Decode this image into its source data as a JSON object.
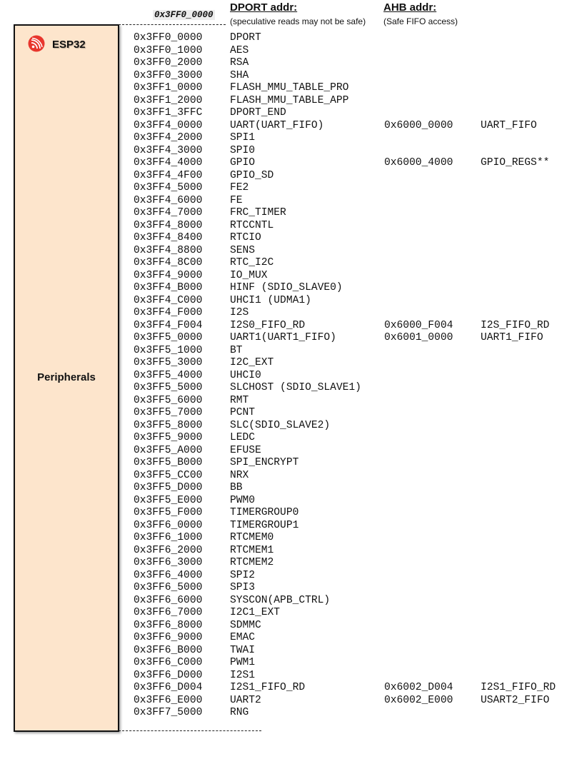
{
  "chip": {
    "label": "ESP32",
    "logo": "espressif-logo"
  },
  "region_label": "Peripherals",
  "start_address": "0x3FF0_0000",
  "headers": {
    "dport": {
      "title": "DPORT addr:",
      "note": "(speculative reads may not be safe)"
    },
    "ahb": {
      "title": "AHB addr:",
      "note": "(Safe FIFO access)"
    }
  },
  "rows": [
    {
      "addr": "0x3FF0_0000",
      "name": "DPORT"
    },
    {
      "addr": "0x3FF0_1000",
      "name": "AES"
    },
    {
      "addr": "0x3FF0_2000",
      "name": "RSA"
    },
    {
      "addr": "0x3FF0_3000",
      "name": "SHA"
    },
    {
      "addr": "0x3FF1_0000",
      "name": "FLASH_MMU_TABLE_PRO"
    },
    {
      "addr": "0x3FF1_2000",
      "name": "FLASH_MMU_TABLE_APP"
    },
    {
      "addr": "0x3FF1_3FFC",
      "name": "DPORT_END"
    },
    {
      "addr": "0x3FF4_0000",
      "name": "UART(UART_FIFO)",
      "ahb_addr": "0x6000_0000",
      "ahb_name": "UART_FIFO"
    },
    {
      "addr": "0x3FF4_2000",
      "name": "SPI1"
    },
    {
      "addr": "0x3FF4_3000",
      "name": "SPI0"
    },
    {
      "addr": "0x3FF4_4000",
      "name": "GPIO",
      "ahb_addr": "0x6000_4000",
      "ahb_name": "GPIO_REGS**"
    },
    {
      "addr": "0x3FF4_4F00",
      "name": "GPIO_SD"
    },
    {
      "addr": "0x3FF4_5000",
      "name": "FE2"
    },
    {
      "addr": "0x3FF4_6000",
      "name": "FE"
    },
    {
      "addr": "0x3FF4_7000",
      "name": "FRC_TIMER"
    },
    {
      "addr": "0x3FF4_8000",
      "name": "RTCCNTL"
    },
    {
      "addr": "0x3FF4_8400",
      "name": "RTCIO"
    },
    {
      "addr": "0x3FF4_8800",
      "name": "SENS"
    },
    {
      "addr": "0x3FF4_8C00",
      "name": "RTC_I2C"
    },
    {
      "addr": "0x3FF4_9000",
      "name": "IO_MUX"
    },
    {
      "addr": "0x3FF4_B000",
      "name": "HINF (SDIO_SLAVE0)"
    },
    {
      "addr": "0x3FF4_C000",
      "name": "UHCI1 (UDMA1)"
    },
    {
      "addr": "0x3FF4_F000",
      "name": "I2S"
    },
    {
      "addr": "0x3FF4_F004",
      "name": "I2S0_FIFO_RD",
      "ahb_addr": "0x6000_F004",
      "ahb_name": "I2S_FIFO_RD"
    },
    {
      "addr": "0x3FF5_0000",
      "name": "UART1(UART1_FIFO)",
      "ahb_addr": "0x6001_0000",
      "ahb_name": "UART1_FIFO"
    },
    {
      "addr": "0x3FF5_1000",
      "name": "BT"
    },
    {
      "addr": "0x3FF5_3000",
      "name": "I2C_EXT"
    },
    {
      "addr": "0x3FF5_4000",
      "name": "UHCI0"
    },
    {
      "addr": "0x3FF5_5000",
      "name": "SLCHOST (SDIO_SLAVE1)"
    },
    {
      "addr": "0x3FF5_6000",
      "name": "RMT"
    },
    {
      "addr": "0x3FF5_7000",
      "name": "PCNT"
    },
    {
      "addr": "0x3FF5_8000",
      "name": "SLC(SDIO_SLAVE2)"
    },
    {
      "addr": "0x3FF5_9000",
      "name": "LEDC"
    },
    {
      "addr": "0x3FF5_A000",
      "name": "EFUSE"
    },
    {
      "addr": "0x3FF5_B000",
      "name": "SPI_ENCRYPT"
    },
    {
      "addr": "0x3FF5_CC00",
      "name": "NRX"
    },
    {
      "addr": "0x3FF5_D000",
      "name": "BB"
    },
    {
      "addr": "0x3FF5_E000",
      "name": "PWM0"
    },
    {
      "addr": "0x3FF5_F000",
      "name": "TIMERGROUP0"
    },
    {
      "addr": "0x3FF6_0000",
      "name": "TIMERGROUP1"
    },
    {
      "addr": "0x3FF6_1000",
      "name": "RTCMEM0"
    },
    {
      "addr": "0x3FF6_2000",
      "name": "RTCMEM1"
    },
    {
      "addr": "0x3FF6_3000",
      "name": "RTCMEM2"
    },
    {
      "addr": "0x3FF6_4000",
      "name": "SPI2"
    },
    {
      "addr": "0x3FF6_5000",
      "name": "SPI3"
    },
    {
      "addr": "0x3FF6_6000",
      "name": "SYSCON(APB_CTRL)"
    },
    {
      "addr": "0x3FF6_7000",
      "name": "I2C1_EXT"
    },
    {
      "addr": "0x3FF6_8000",
      "name": "SDMMC"
    },
    {
      "addr": "0x3FF6_9000",
      "name": "EMAC"
    },
    {
      "addr": "0x3FF6_B000",
      "name": "TWAI"
    },
    {
      "addr": "0x3FF6_C000",
      "name": "PWM1"
    },
    {
      "addr": "0x3FF6_D000",
      "name": "I2S1"
    },
    {
      "addr": "0x3FF6_D004",
      "name": "I2S1_FIFO_RD",
      "ahb_addr": "0x6002_D004",
      "ahb_name": "I2S1_FIFO_RD"
    },
    {
      "addr": "0x3FF6_E000",
      "name": "UART2",
      "ahb_addr": "0x6002_E000",
      "ahb_name": "USART2_FIFO"
    },
    {
      "addr": "0x3FF7_5000",
      "name": "RNG"
    }
  ]
}
